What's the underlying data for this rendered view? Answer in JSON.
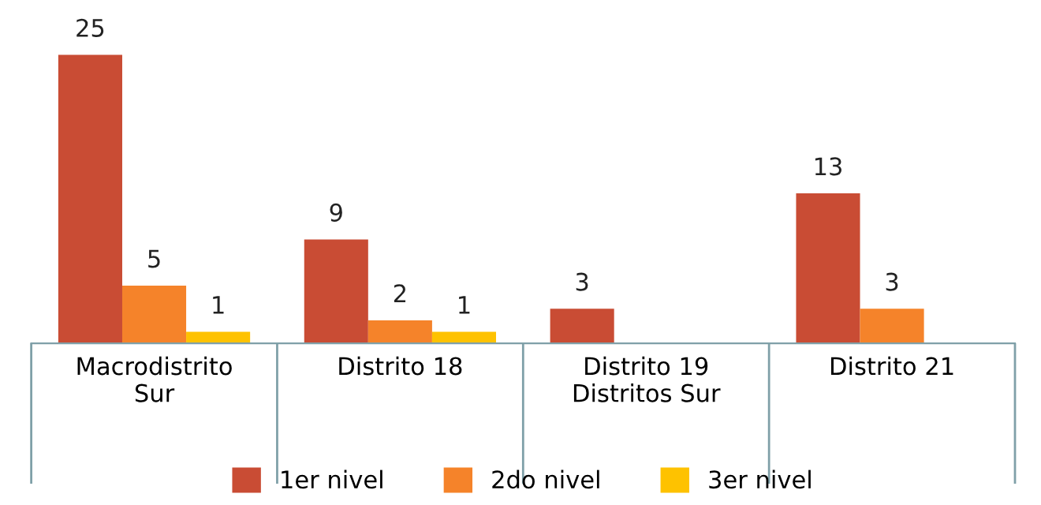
{
  "chart_data": {
    "type": "bar",
    "categories": [
      "Macrodistrito\nSur",
      "Distrito 18",
      "Distrito 19\nDistritos Sur",
      "Distrito 21"
    ],
    "series": [
      {
        "name": "1er nivel",
        "color": "#c94c34",
        "values": [
          25,
          9,
          3,
          13
        ]
      },
      {
        "name": "2do nivel",
        "color": "#f5832a",
        "values": [
          5,
          2,
          null,
          3
        ]
      },
      {
        "name": "3er nivel",
        "color": "#fec200",
        "values": [
          1,
          1,
          null,
          null
        ]
      }
    ],
    "data_labels": true,
    "legend": "bottom",
    "grid": false
  }
}
